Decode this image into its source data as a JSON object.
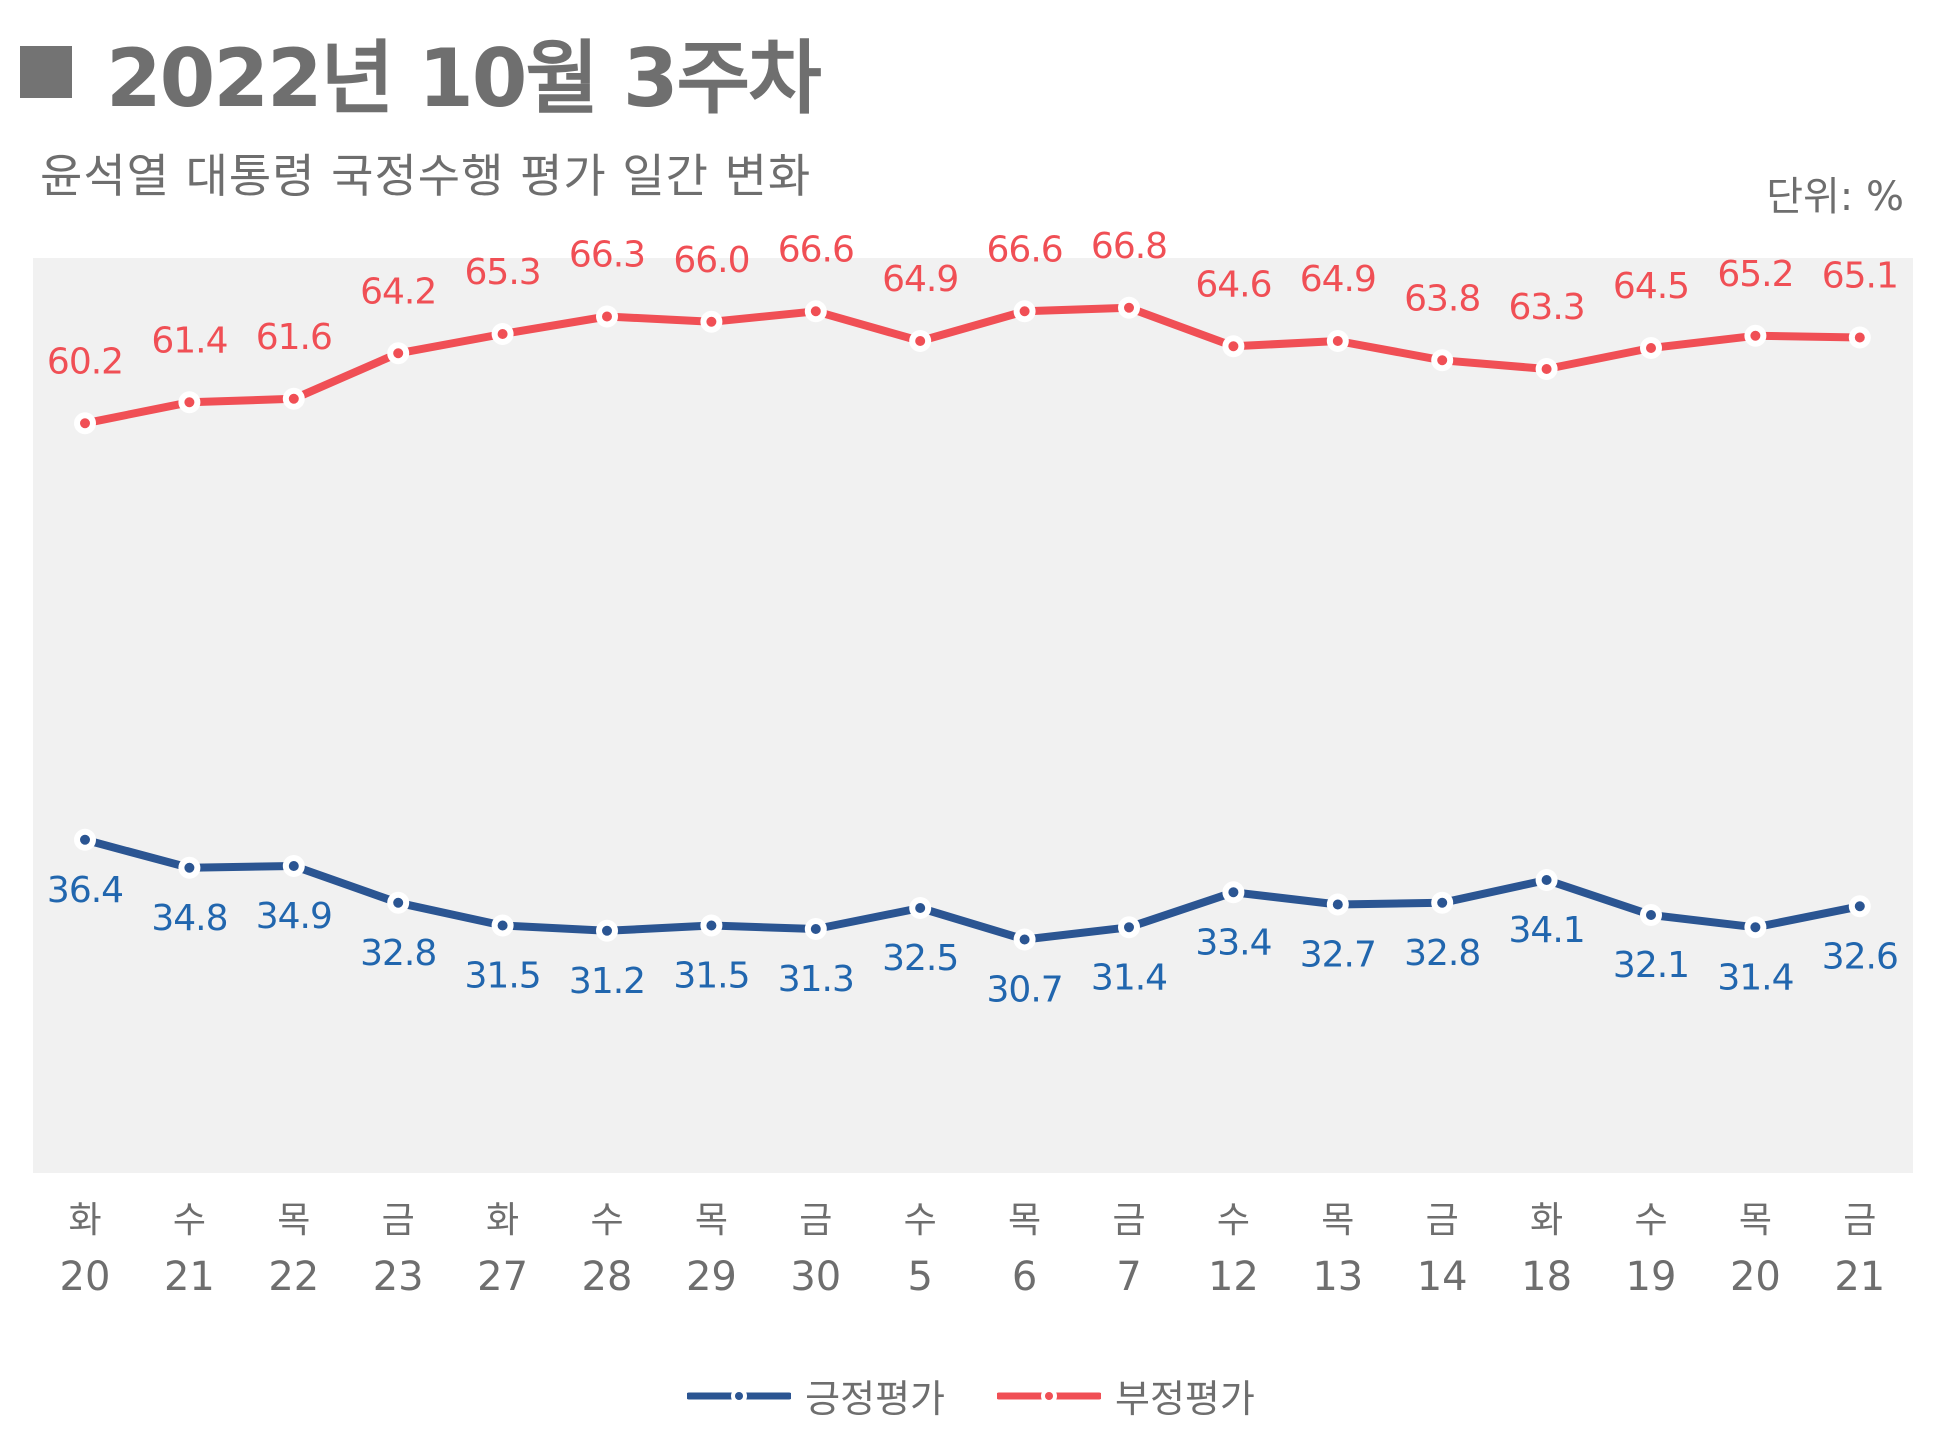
{
  "header": {
    "title": "2022년 10월 3주차",
    "subtitle": "윤석열 대통령 국정수행 평가 일간 변화",
    "unit": "단위: %"
  },
  "legend": {
    "positive": "긍정평가",
    "negative": "부정평가"
  },
  "colors": {
    "positive": "#2b5592",
    "positive_label": "#2166ae",
    "negative": "#f04f55",
    "plot_bg": "#f1f1f1",
    "axis_text": "#6e6e6e"
  },
  "chart_data": {
    "type": "line",
    "title": "윤석열 대통령 국정수행 평가 일간 변화",
    "unit": "%",
    "weekdays": [
      "화",
      "수",
      "목",
      "금",
      "화",
      "수",
      "목",
      "금",
      "수",
      "목",
      "금",
      "수",
      "목",
      "금",
      "화",
      "수",
      "목",
      "금"
    ],
    "dates": [
      "20",
      "21",
      "22",
      "23",
      "27",
      "28",
      "29",
      "30",
      "5",
      "6",
      "7",
      "12",
      "13",
      "14",
      "18",
      "19",
      "20",
      "21"
    ],
    "series": [
      {
        "name": "긍정평가",
        "values": [
          36.4,
          34.8,
          34.9,
          32.8,
          31.5,
          31.2,
          31.5,
          31.3,
          32.5,
          30.7,
          31.4,
          33.4,
          32.7,
          32.8,
          34.1,
          32.1,
          31.4,
          32.6
        ]
      },
      {
        "name": "부정평가",
        "values": [
          60.2,
          61.4,
          61.6,
          64.2,
          65.3,
          66.3,
          66.0,
          66.6,
          64.9,
          66.6,
          66.8,
          64.6,
          64.9,
          63.8,
          63.3,
          64.5,
          65.2,
          65.1
        ]
      }
    ],
    "legend_position": "bottom",
    "grid": false
  }
}
